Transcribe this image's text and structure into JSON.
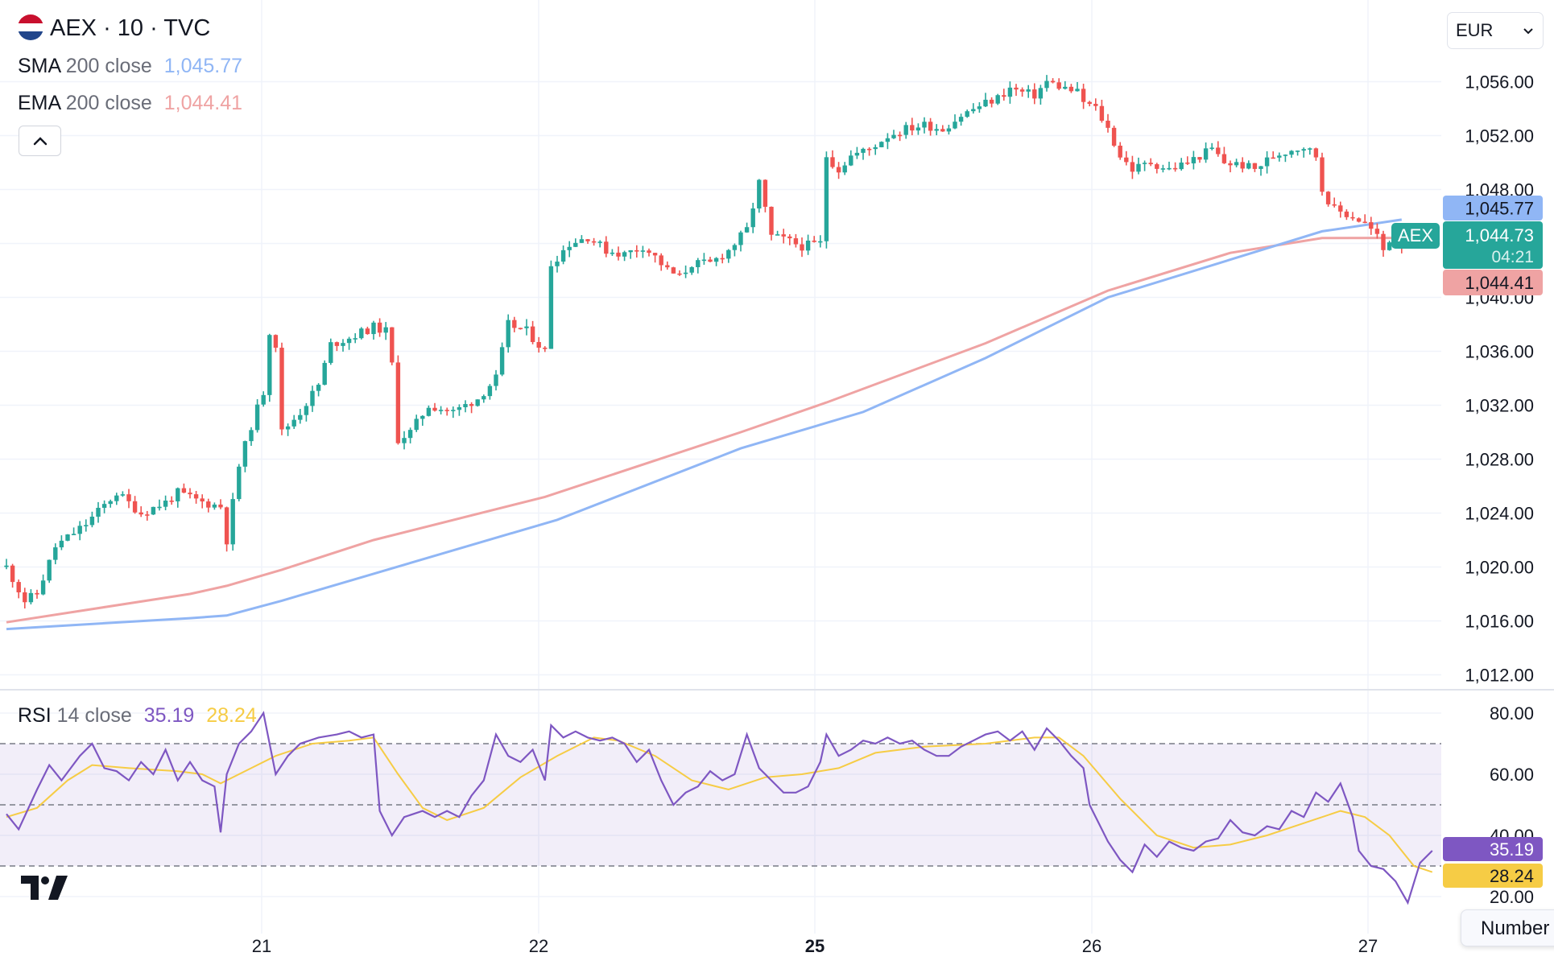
{
  "header": {
    "symbol": "AEX · 10 · TVC",
    "flag_colors": [
      "#c8102e",
      "#ffffff",
      "#21468b"
    ]
  },
  "indicators": {
    "sma": {
      "name": "SMA",
      "args": "200 close",
      "value": "1,045.77",
      "color": "#90b6f5"
    },
    "ema": {
      "name": "EMA",
      "args": "200 close",
      "value": "1,044.41",
      "color": "#efa3a3"
    },
    "rsi": {
      "name": "RSI",
      "args": "14 close",
      "value": "35.19",
      "ma_value": "28.24",
      "color": "#7e57c2",
      "ma_color": "#f6cc45"
    }
  },
  "currency": {
    "selected": "EUR"
  },
  "price_scale": {
    "labels": [
      "1,056.00",
      "1,052.00",
      "1,048.00",
      "1,044.00",
      "1,040.00",
      "1,036.00",
      "1,032.00",
      "1,028.00",
      "1,024.00",
      "1,020.00",
      "1,016.00",
      "1,012.00"
    ],
    "sma_tag": "1,045.77",
    "ema_tag": "1,044.41",
    "last_tag": {
      "label": "AEX",
      "price": "1,044.73",
      "countdown": "04:21"
    }
  },
  "rsi_scale": {
    "labels": [
      "80.00",
      "60.00",
      "40.00",
      "20.00"
    ],
    "rsi_tag": "35.19",
    "ma_tag": "28.24"
  },
  "time_axis": [
    {
      "label": "21",
      "bold": false
    },
    {
      "label": "22",
      "bold": false
    },
    {
      "label": "25",
      "bold": true
    },
    {
      "label": "26",
      "bold": false
    },
    {
      "label": "27",
      "bold": false
    }
  ],
  "tooltip": {
    "text": "Number"
  },
  "colors": {
    "up": "#26a69a",
    "down": "#ef5350",
    "grid": "#f0f3fa",
    "band": "#7e57c2"
  },
  "chart_data": {
    "type": "candlestick",
    "title": "AEX · 10 · TVC",
    "interval": "10 minutes",
    "ylim": [
      1012,
      1056
    ],
    "rsi_ylim": [
      20,
      80
    ],
    "rsi_bands": [
      30,
      50,
      70
    ],
    "days": [
      "21",
      "22",
      "25",
      "26",
      "27"
    ],
    "price_path": [
      [
        0,
        1020.0
      ],
      [
        3,
        1017.5
      ],
      [
        5,
        1018.0
      ],
      [
        8,
        1021.5
      ],
      [
        13,
        1023.2
      ],
      [
        18,
        1025.5
      ],
      [
        22,
        1024.0
      ],
      [
        26,
        1024.8
      ],
      [
        28,
        1025.5
      ],
      [
        32,
        1024.8
      ],
      [
        35,
        1024.5
      ],
      [
        36,
        1022.0
      ],
      [
        38,
        1027.5
      ],
      [
        40,
        1030.5
      ],
      [
        42,
        1033.0
      ],
      [
        43,
        1037.5
      ],
      [
        44,
        1036.5
      ],
      [
        45,
        1030.0
      ],
      [
        48,
        1031.5
      ],
      [
        51,
        1033.5
      ],
      [
        53,
        1036.5
      ],
      [
        56,
        1037.0
      ],
      [
        60,
        1037.8
      ],
      [
        62,
        1037.5
      ],
      [
        63,
        1035.0
      ],
      [
        64,
        1029.5
      ],
      [
        66,
        1030.0
      ],
      [
        69,
        1032.0
      ],
      [
        73,
        1031.5
      ],
      [
        77,
        1032.5
      ],
      [
        80,
        1034.0
      ],
      [
        82,
        1038.0
      ],
      [
        85,
        1037.5
      ],
      [
        88,
        1036.0
      ],
      [
        89,
        1042.5
      ],
      [
        92,
        1044.0
      ],
      [
        95,
        1044.5
      ],
      [
        98,
        1043.5
      ],
      [
        101,
        1043.2
      ],
      [
        104,
        1043.8
      ],
      [
        106,
        1043.0
      ],
      [
        108,
        1042.0
      ],
      [
        110,
        1041.5
      ],
      [
        112,
        1042.5
      ],
      [
        115,
        1042.5
      ],
      [
        118,
        1043.5
      ],
      [
        121,
        1045.0
      ],
      [
        123,
        1048.5
      ],
      [
        125,
        1044.5
      ],
      [
        127,
        1044.3
      ],
      [
        130,
        1043.8
      ],
      [
        133,
        1044.0
      ],
      [
        134,
        1050.5
      ],
      [
        136,
        1049.5
      ],
      [
        138,
        1050.5
      ],
      [
        141,
        1051.0
      ],
      [
        144,
        1052.0
      ],
      [
        147,
        1052.5
      ],
      [
        150,
        1052.8
      ],
      [
        153,
        1052.5
      ],
      [
        156,
        1053.5
      ],
      [
        159,
        1054.2
      ],
      [
        162,
        1054.8
      ],
      [
        164,
        1055.5
      ],
      [
        166,
        1055.2
      ],
      [
        168,
        1055.0
      ],
      [
        170,
        1056.0
      ],
      [
        173,
        1055.5
      ],
      [
        175,
        1055.2
      ],
      [
        176,
        1054.5
      ],
      [
        178,
        1054.0
      ],
      [
        180,
        1052.5
      ],
      [
        182,
        1050.5
      ],
      [
        184,
        1049.5
      ],
      [
        187,
        1050.0
      ],
      [
        190,
        1049.5
      ],
      [
        193,
        1050.0
      ],
      [
        195,
        1050.5
      ],
      [
        197,
        1051.0
      ],
      [
        199,
        1050.0
      ],
      [
        202,
        1049.8
      ],
      [
        204,
        1049.5
      ],
      [
        207,
        1050.5
      ],
      [
        210,
        1051.0
      ],
      [
        212,
        1051.2
      ],
      [
        214,
        1050.5
      ],
      [
        215,
        1048.0
      ],
      [
        217,
        1046.5
      ],
      [
        220,
        1046.0
      ],
      [
        222,
        1045.5
      ],
      [
        224,
        1044.5
      ],
      [
        225,
        1043.5
      ],
      [
        226,
        1044.3
      ],
      [
        228,
        1044.0
      ]
    ],
    "sma": [
      [
        0,
        1015.4
      ],
      [
        30,
        1016.2
      ],
      [
        36,
        1016.4
      ],
      [
        45,
        1017.5
      ],
      [
        60,
        1019.5
      ],
      [
        90,
        1023.5
      ],
      [
        120,
        1028.8
      ],
      [
        140,
        1031.5
      ],
      [
        160,
        1035.5
      ],
      [
        180,
        1040.0
      ],
      [
        200,
        1042.8
      ],
      [
        215,
        1044.9
      ],
      [
        228,
        1045.77
      ]
    ],
    "ema": [
      [
        0,
        1015.9
      ],
      [
        30,
        1018.0
      ],
      [
        36,
        1018.6
      ],
      [
        45,
        1019.8
      ],
      [
        60,
        1022.0
      ],
      [
        88,
        1025.2
      ],
      [
        120,
        1030.0
      ],
      [
        134,
        1032.2
      ],
      [
        160,
        1036.6
      ],
      [
        180,
        1040.5
      ],
      [
        200,
        1043.3
      ],
      [
        215,
        1044.4
      ],
      [
        228,
        1044.41
      ]
    ],
    "rsi": [
      [
        0,
        47
      ],
      [
        2,
        42
      ],
      [
        5,
        55
      ],
      [
        7,
        63
      ],
      [
        9,
        58
      ],
      [
        12,
        66
      ],
      [
        14,
        70
      ],
      [
        16,
        62
      ],
      [
        18,
        61
      ],
      [
        20,
        58
      ],
      [
        22,
        64
      ],
      [
        24,
        60
      ],
      [
        26,
        68
      ],
      [
        28,
        58
      ],
      [
        30,
        64
      ],
      [
        32,
        58
      ],
      [
        34,
        56
      ],
      [
        35,
        41
      ],
      [
        36,
        60
      ],
      [
        38,
        70
      ],
      [
        40,
        74
      ],
      [
        42,
        80
      ],
      [
        44,
        60
      ],
      [
        46,
        66
      ],
      [
        48,
        70
      ],
      [
        51,
        72
      ],
      [
        54,
        73
      ],
      [
        56,
        74
      ],
      [
        58,
        72
      ],
      [
        60,
        73
      ],
      [
        61,
        48
      ],
      [
        63,
        40
      ],
      [
        65,
        46
      ],
      [
        68,
        48
      ],
      [
        70,
        46
      ],
      [
        72,
        48
      ],
      [
        74,
        46
      ],
      [
        76,
        53
      ],
      [
        78,
        58
      ],
      [
        80,
        73
      ],
      [
        82,
        66
      ],
      [
        84,
        64
      ],
      [
        86,
        68
      ],
      [
        88,
        58
      ],
      [
        89,
        76
      ],
      [
        91,
        72
      ],
      [
        93,
        74
      ],
      [
        95,
        72
      ],
      [
        97,
        71
      ],
      [
        99,
        72
      ],
      [
        101,
        70
      ],
      [
        103,
        64
      ],
      [
        105,
        68
      ],
      [
        107,
        58
      ],
      [
        109,
        50
      ],
      [
        111,
        54
      ],
      [
        113,
        56
      ],
      [
        115,
        61
      ],
      [
        117,
        58
      ],
      [
        119,
        60
      ],
      [
        121,
        73
      ],
      [
        123,
        62
      ],
      [
        125,
        58
      ],
      [
        127,
        54
      ],
      [
        129,
        54
      ],
      [
        131,
        56
      ],
      [
        133,
        64
      ],
      [
        134,
        73
      ],
      [
        136,
        66
      ],
      [
        138,
        68
      ],
      [
        140,
        71
      ],
      [
        142,
        70
      ],
      [
        144,
        72
      ],
      [
        146,
        70
      ],
      [
        148,
        71
      ],
      [
        150,
        68
      ],
      [
        152,
        66
      ],
      [
        154,
        66
      ],
      [
        156,
        69
      ],
      [
        158,
        71
      ],
      [
        160,
        73
      ],
      [
        162,
        74
      ],
      [
        164,
        71
      ],
      [
        166,
        74
      ],
      [
        168,
        68
      ],
      [
        170,
        75
      ],
      [
        172,
        71
      ],
      [
        174,
        66
      ],
      [
        176,
        62
      ],
      [
        177,
        50
      ],
      [
        178,
        46
      ],
      [
        180,
        38
      ],
      [
        182,
        32
      ],
      [
        184,
        28
      ],
      [
        186,
        37
      ],
      [
        188,
        33
      ],
      [
        190,
        38
      ],
      [
        192,
        36
      ],
      [
        194,
        35
      ],
      [
        196,
        38
      ],
      [
        198,
        39
      ],
      [
        200,
        45
      ],
      [
        202,
        41
      ],
      [
        204,
        40
      ],
      [
        206,
        43
      ],
      [
        208,
        42
      ],
      [
        210,
        48
      ],
      [
        212,
        46
      ],
      [
        214,
        54
      ],
      [
        216,
        51
      ],
      [
        218,
        57
      ],
      [
        220,
        46
      ],
      [
        221,
        35
      ],
      [
        223,
        30
      ],
      [
        225,
        29
      ],
      [
        227,
        25
      ],
      [
        229,
        18
      ],
      [
        231,
        31
      ],
      [
        233,
        35
      ]
    ],
    "rsi_ma": [
      [
        0,
        46
      ],
      [
        5,
        49
      ],
      [
        10,
        58
      ],
      [
        14,
        63
      ],
      [
        20,
        62
      ],
      [
        28,
        61
      ],
      [
        32,
        60
      ],
      [
        35,
        57
      ],
      [
        40,
        62
      ],
      [
        44,
        66
      ],
      [
        50,
        70
      ],
      [
        56,
        71
      ],
      [
        60,
        72
      ],
      [
        64,
        60
      ],
      [
        68,
        49
      ],
      [
        72,
        45
      ],
      [
        78,
        49
      ],
      [
        84,
        59
      ],
      [
        90,
        66
      ],
      [
        96,
        72
      ],
      [
        100,
        71
      ],
      [
        106,
        66
      ],
      [
        112,
        58
      ],
      [
        118,
        55
      ],
      [
        124,
        59
      ],
      [
        130,
        60
      ],
      [
        136,
        62
      ],
      [
        142,
        67
      ],
      [
        150,
        69
      ],
      [
        160,
        70
      ],
      [
        168,
        72
      ],
      [
        172,
        72
      ],
      [
        176,
        66
      ],
      [
        182,
        52
      ],
      [
        188,
        40
      ],
      [
        194,
        36
      ],
      [
        200,
        37
      ],
      [
        206,
        40
      ],
      [
        212,
        44
      ],
      [
        218,
        48
      ],
      [
        222,
        46
      ],
      [
        226,
        40
      ],
      [
        230,
        30
      ],
      [
        233,
        28
      ]
    ]
  }
}
